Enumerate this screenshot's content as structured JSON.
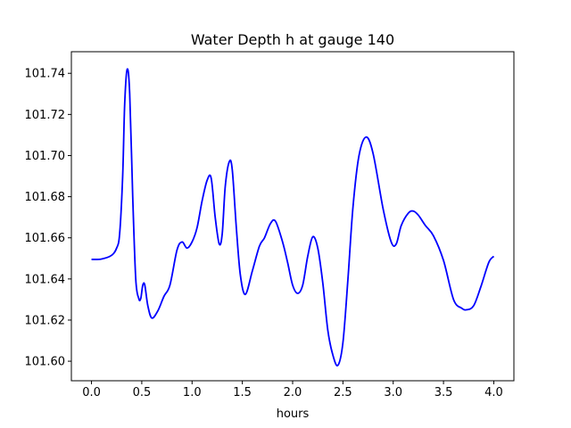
{
  "chart_data": {
    "type": "line",
    "title": "Water Depth h at gauge 140",
    "xlabel": "hours",
    "ylabel": "",
    "xlim": [
      -0.2,
      4.2
    ],
    "ylim": [
      101.5905,
      101.7505
    ],
    "xticks": [
      0.0,
      0.5,
      1.0,
      1.5,
      2.0,
      2.5,
      3.0,
      3.5,
      4.0
    ],
    "xtick_labels": [
      "0.0",
      "0.5",
      "1.0",
      "1.5",
      "2.0",
      "2.5",
      "3.0",
      "3.5",
      "4.0"
    ],
    "yticks": [
      101.6,
      101.62,
      101.64,
      101.66,
      101.68,
      101.7,
      101.72,
      101.74
    ],
    "ytick_labels": [
      "101.60",
      "101.62",
      "101.64",
      "101.66",
      "101.68",
      "101.70",
      "101.72",
      "101.74"
    ],
    "grid": false,
    "series": [
      {
        "color": "#0000ff",
        "points": [
          [
            0.0,
            101.6495
          ],
          [
            0.1,
            101.6497
          ],
          [
            0.2,
            101.6515
          ],
          [
            0.25,
            101.655
          ],
          [
            0.28,
            101.662
          ],
          [
            0.31,
            101.69
          ],
          [
            0.33,
            101.725
          ],
          [
            0.355,
            101.742
          ],
          [
            0.38,
            101.73
          ],
          [
            0.41,
            101.68
          ],
          [
            0.44,
            101.64
          ],
          [
            0.47,
            101.6305
          ],
          [
            0.49,
            101.6305
          ],
          [
            0.51,
            101.637
          ],
          [
            0.53,
            101.637
          ],
          [
            0.56,
            101.627
          ],
          [
            0.6,
            101.621
          ],
          [
            0.66,
            101.6245
          ],
          [
            0.72,
            101.6315
          ],
          [
            0.78,
            101.637
          ],
          [
            0.85,
            101.654
          ],
          [
            0.9,
            101.658
          ],
          [
            0.95,
            101.655
          ],
          [
            1.0,
            101.658
          ],
          [
            1.05,
            101.665
          ],
          [
            1.1,
            101.678
          ],
          [
            1.15,
            101.688
          ],
          [
            1.19,
            101.689
          ],
          [
            1.23,
            101.67
          ],
          [
            1.27,
            101.657
          ],
          [
            1.3,
            101.662
          ],
          [
            1.33,
            101.685
          ],
          [
            1.37,
            101.697
          ],
          [
            1.4,
            101.693
          ],
          [
            1.44,
            101.665
          ],
          [
            1.48,
            101.642
          ],
          [
            1.53,
            101.6325
          ],
          [
            1.6,
            101.644
          ],
          [
            1.67,
            101.656
          ],
          [
            1.72,
            101.66
          ],
          [
            1.78,
            101.667
          ],
          [
            1.83,
            101.668
          ],
          [
            1.9,
            101.658
          ],
          [
            1.95,
            101.648
          ],
          [
            2.0,
            101.637
          ],
          [
            2.05,
            101.633
          ],
          [
            2.1,
            101.637
          ],
          [
            2.15,
            101.651
          ],
          [
            2.2,
            101.6605
          ],
          [
            2.25,
            101.655
          ],
          [
            2.3,
            101.638
          ],
          [
            2.35,
            101.615
          ],
          [
            2.4,
            101.603
          ],
          [
            2.45,
            101.598
          ],
          [
            2.5,
            101.609
          ],
          [
            2.55,
            101.64
          ],
          [
            2.6,
            101.675
          ],
          [
            2.66,
            101.7
          ],
          [
            2.73,
            101.709
          ],
          [
            2.8,
            101.701
          ],
          [
            2.9,
            101.674
          ],
          [
            2.98,
            101.658
          ],
          [
            3.03,
            101.657
          ],
          [
            3.08,
            101.666
          ],
          [
            3.15,
            101.672
          ],
          [
            3.2,
            101.673
          ],
          [
            3.25,
            101.671
          ],
          [
            3.32,
            101.666
          ],
          [
            3.4,
            101.661
          ],
          [
            3.5,
            101.649
          ],
          [
            3.6,
            101.63
          ],
          [
            3.68,
            101.6258
          ],
          [
            3.73,
            101.625
          ],
          [
            3.8,
            101.627
          ],
          [
            3.87,
            101.636
          ],
          [
            3.95,
            101.648
          ],
          [
            4.0,
            101.651
          ]
        ]
      }
    ]
  }
}
